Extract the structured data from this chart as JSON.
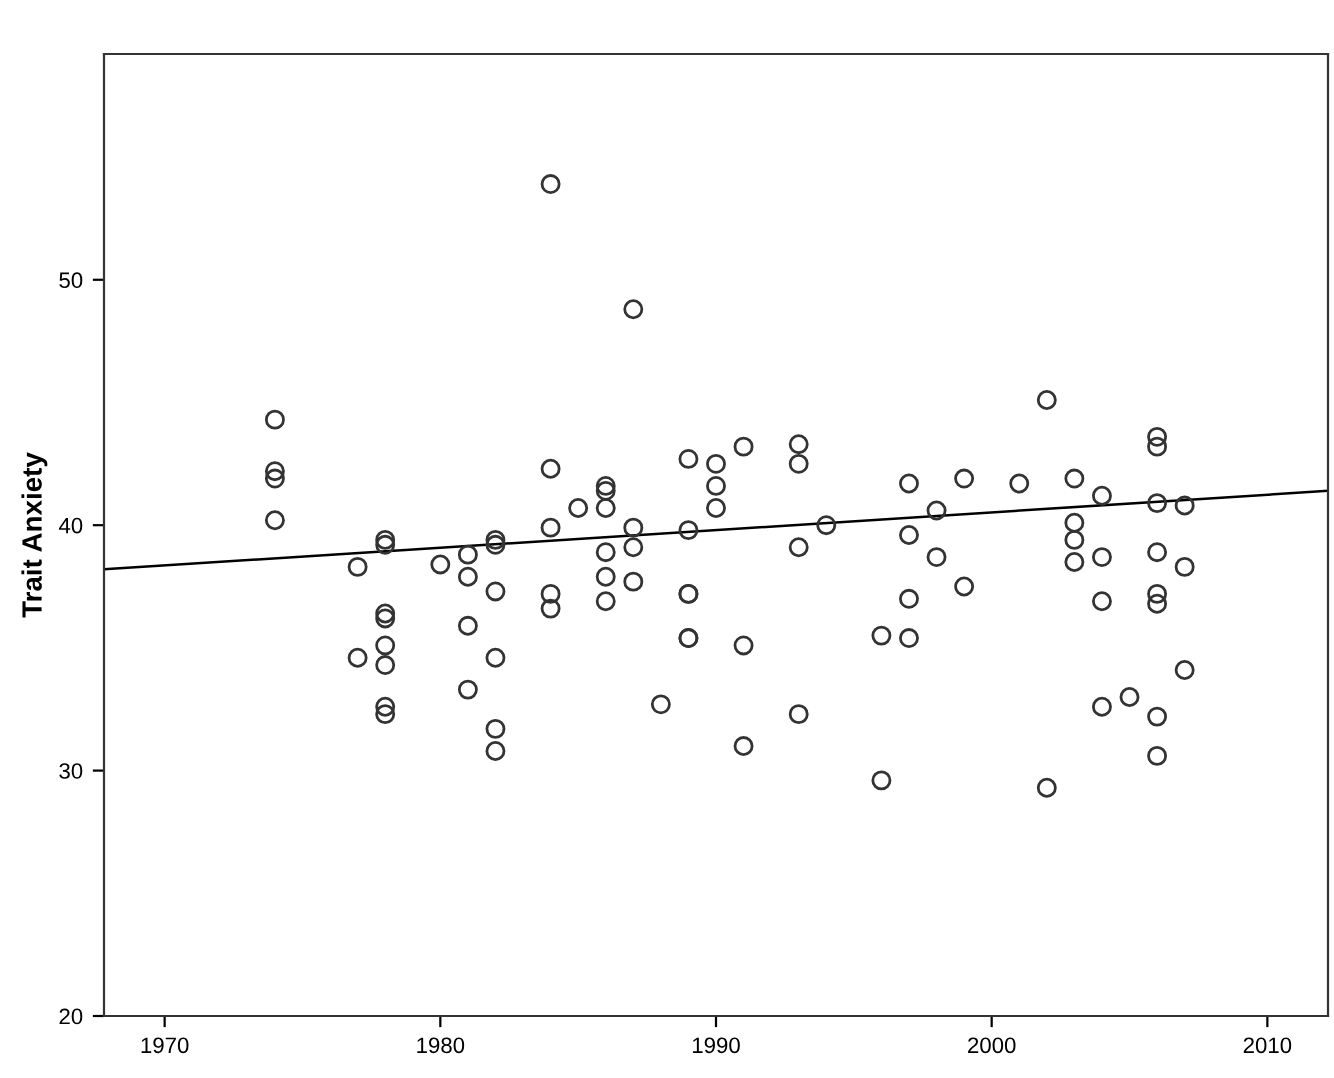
{
  "chart_data": {
    "type": "scatter",
    "ylabel": "Trait Anxiety",
    "xlim": [
      1967.8,
      2012.2
    ],
    "xticks": [
      1970,
      1980,
      1990,
      2000,
      2010
    ],
    "ylim": [
      20,
      59.2
    ],
    "yticks": [
      20,
      30,
      40,
      50
    ],
    "grid": false,
    "marker": "circle",
    "series": [
      {
        "color": "#333333",
        "x": [
          1974,
          1974,
          1974,
          1974,
          1977,
          1977,
          1978,
          1978,
          1978,
          1978,
          1978,
          1978,
          1978,
          1978,
          1980,
          1981,
          1981,
          1981,
          1981,
          1982,
          1982,
          1982,
          1982,
          1982,
          1982,
          1984,
          1984,
          1984,
          1984,
          1984,
          1985,
          1986,
          1986,
          1986,
          1986,
          1986,
          1986,
          1987,
          1987,
          1987,
          1987,
          1988,
          1989,
          1989,
          1989,
          1989,
          1989,
          1989,
          1990,
          1990,
          1990,
          1991,
          1991,
          1991,
          1993,
          1993,
          1993,
          1993,
          1994,
          1996,
          1996,
          1997,
          1997,
          1997,
          1997,
          1998,
          1998,
          1999,
          1999,
          2001,
          2002,
          2002,
          2003,
          2003,
          2003,
          2003,
          2004,
          2004,
          2004,
          2004,
          2005,
          2006,
          2006,
          2006,
          2006,
          2006,
          2006,
          2006,
          2006,
          2007,
          2007,
          2007
        ],
        "values": [
          44.3,
          42.2,
          41.9,
          40.2,
          38.3,
          34.6,
          39.4,
          39.2,
          36.4,
          36.2,
          35.1,
          34.3,
          32.6,
          32.3,
          38.4,
          38.8,
          37.9,
          35.9,
          33.3,
          39.4,
          39.2,
          37.3,
          34.6,
          31.7,
          30.8,
          53.9,
          42.3,
          39.9,
          37.2,
          36.6,
          40.7,
          41.6,
          41.4,
          40.7,
          38.9,
          37.9,
          36.9,
          48.8,
          39.9,
          39.1,
          37.7,
          32.7,
          42.7,
          39.8,
          37.2,
          37.2,
          35.4,
          35.4,
          42.5,
          41.6,
          40.7,
          43.2,
          35.1,
          31.0,
          43.3,
          42.5,
          39.1,
          32.3,
          40.0,
          35.5,
          29.6,
          41.7,
          39.6,
          37.0,
          35.4,
          40.6,
          38.7,
          41.9,
          37.5,
          41.7,
          45.1,
          29.3,
          41.9,
          40.1,
          39.4,
          38.5,
          41.2,
          38.7,
          36.9,
          32.6,
          33.0,
          43.6,
          43.2,
          40.9,
          38.9,
          37.2,
          36.8,
          32.2,
          30.6,
          40.8,
          38.3,
          34.1
        ]
      },
      {
        "type": "line",
        "color": "#000000",
        "marker": "none",
        "x": [
          1967.8,
          2012.2
        ],
        "values": [
          38.2,
          41.4
        ]
      }
    ]
  }
}
